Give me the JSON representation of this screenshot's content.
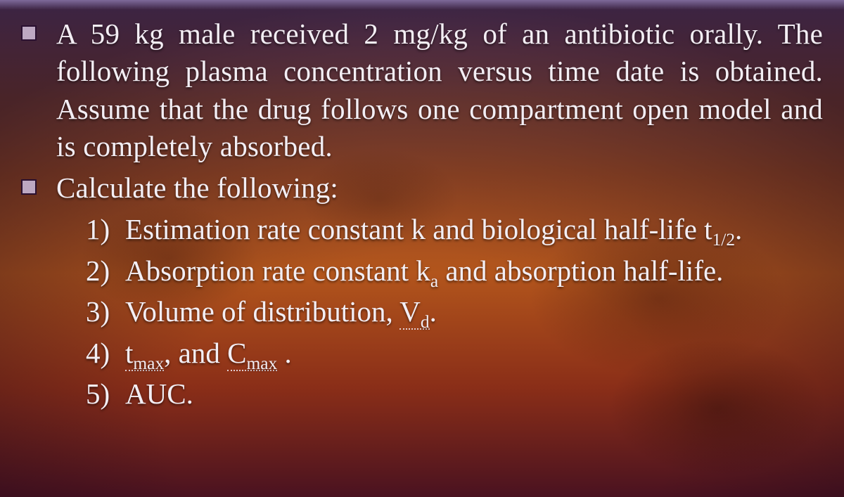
{
  "slide": {
    "background": {
      "gradient_stops": [
        "#6a4a7a",
        "#7b4a60",
        "#8a4a3a",
        "#9a4a24",
        "#b2551c",
        "#8a2e18",
        "#4a1220"
      ],
      "top_strip_color": "#7e6a9a"
    },
    "text_color": "#f3eef4",
    "bullet_square": {
      "fill": "#bda8c2",
      "border": "#2a1030"
    },
    "font_family": "Times New Roman",
    "body_fontsize_pt": 31,
    "bullets": [
      {
        "text": "A 59 kg male received 2 mg/kg of an antibiotic orally. The following plasma concentration versus time date is obtained. Assume that the drug follows one compartment open model and is completely absorbed."
      },
      {
        "text": "Calculate the following:"
      }
    ],
    "items": [
      {
        "n": "1)",
        "plain": "Estimation rate constant k and biological half-life ",
        "tail_sym": "t",
        "tail_sub": "1/2",
        "tail_after": "."
      },
      {
        "n": "2)",
        "plain": "Absorption rate constant ",
        "mid_sym": "k",
        "mid_sub": "a",
        "mid_after": " and absorption half-life."
      },
      {
        "n": "3)",
        "plain": "Volume of distribution, ",
        "dotted_sym": "V",
        "dotted_sub": "d",
        "dotted_after": "."
      },
      {
        "n": "4)",
        "dotted_sym": "t",
        "dotted_sub": "max",
        "mid_plain": ", and ",
        "dotted2_sym": "C",
        "dotted2_sub": "max",
        "dotted_after": " ."
      },
      {
        "n": "5)",
        "plain": "AUC."
      }
    ]
  }
}
